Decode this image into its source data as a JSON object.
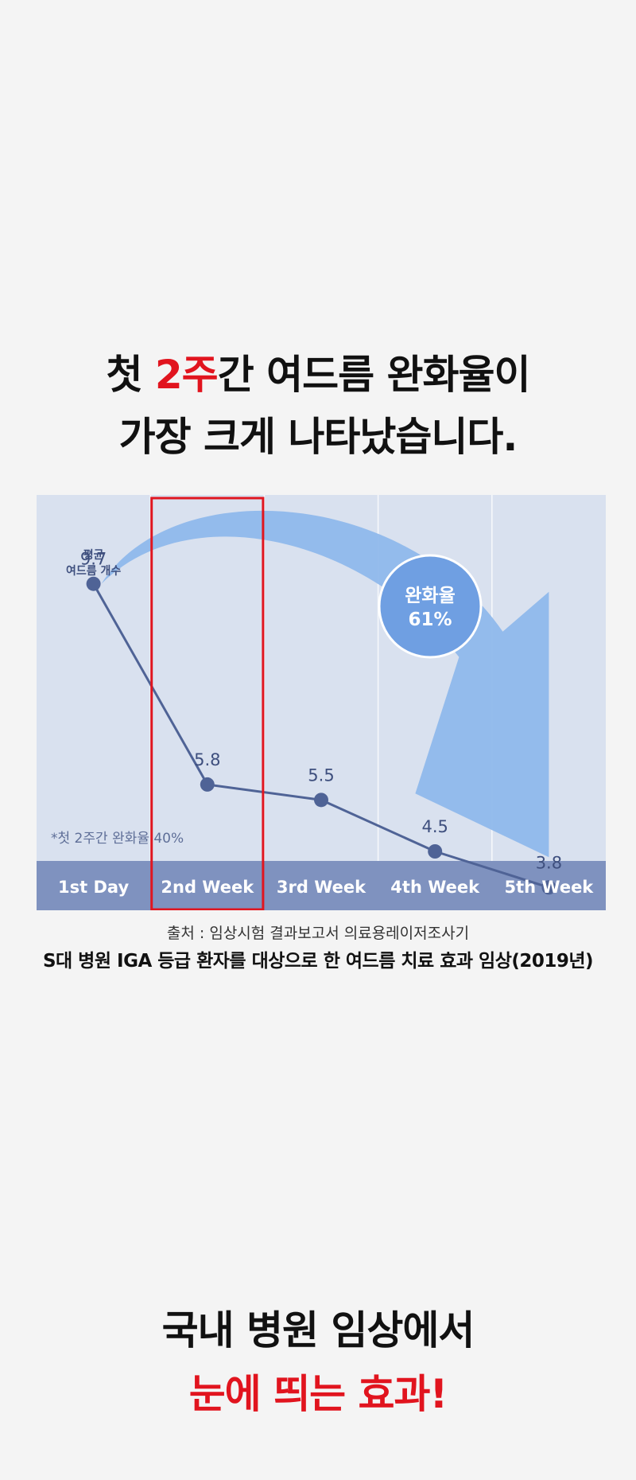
{
  "headline1": {
    "line1_pre": "첫 ",
    "line1_em": "2주",
    "line1_post": "간 여드름 완화율이",
    "line2": "가장 크게 나타났습니다."
  },
  "chart_data": {
    "type": "line",
    "categories": [
      "1st Day",
      "2nd Week",
      "3rd Week",
      "4th Week",
      "5th Week"
    ],
    "values": [
      9.7,
      5.8,
      5.5,
      4.5,
      3.8
    ],
    "value_labels": [
      "9.7",
      "5.8",
      "5.5",
      "4.5",
      "3.8"
    ],
    "ylabel_line1": "평균",
    "ylabel_line2": "여드름 개수",
    "highlight_category": "2nd Week",
    "annotation": "*첫 2주간 완화율 40%",
    "badge_line1": "완화율",
    "badge_line2": "61%",
    "ylim": [
      3,
      10.5
    ],
    "grid": false,
    "colors": {
      "background": "#d9e1ef",
      "line": "#4f6396",
      "axis_band": "#7f92bf",
      "arrow": "#8fb8eb",
      "highlight": "#e01620"
    }
  },
  "source": {
    "line1": "출처 : 임상시험 결과보고서 의료용레이저조사기",
    "line2": "S대 병원 IGA 등급 환자를 대상으로 한 여드름 치료 효과 임상(2019년)"
  },
  "headline2": {
    "line1": "국내 병원 임상에서",
    "line2": "눈에 띄는 효과!"
  }
}
